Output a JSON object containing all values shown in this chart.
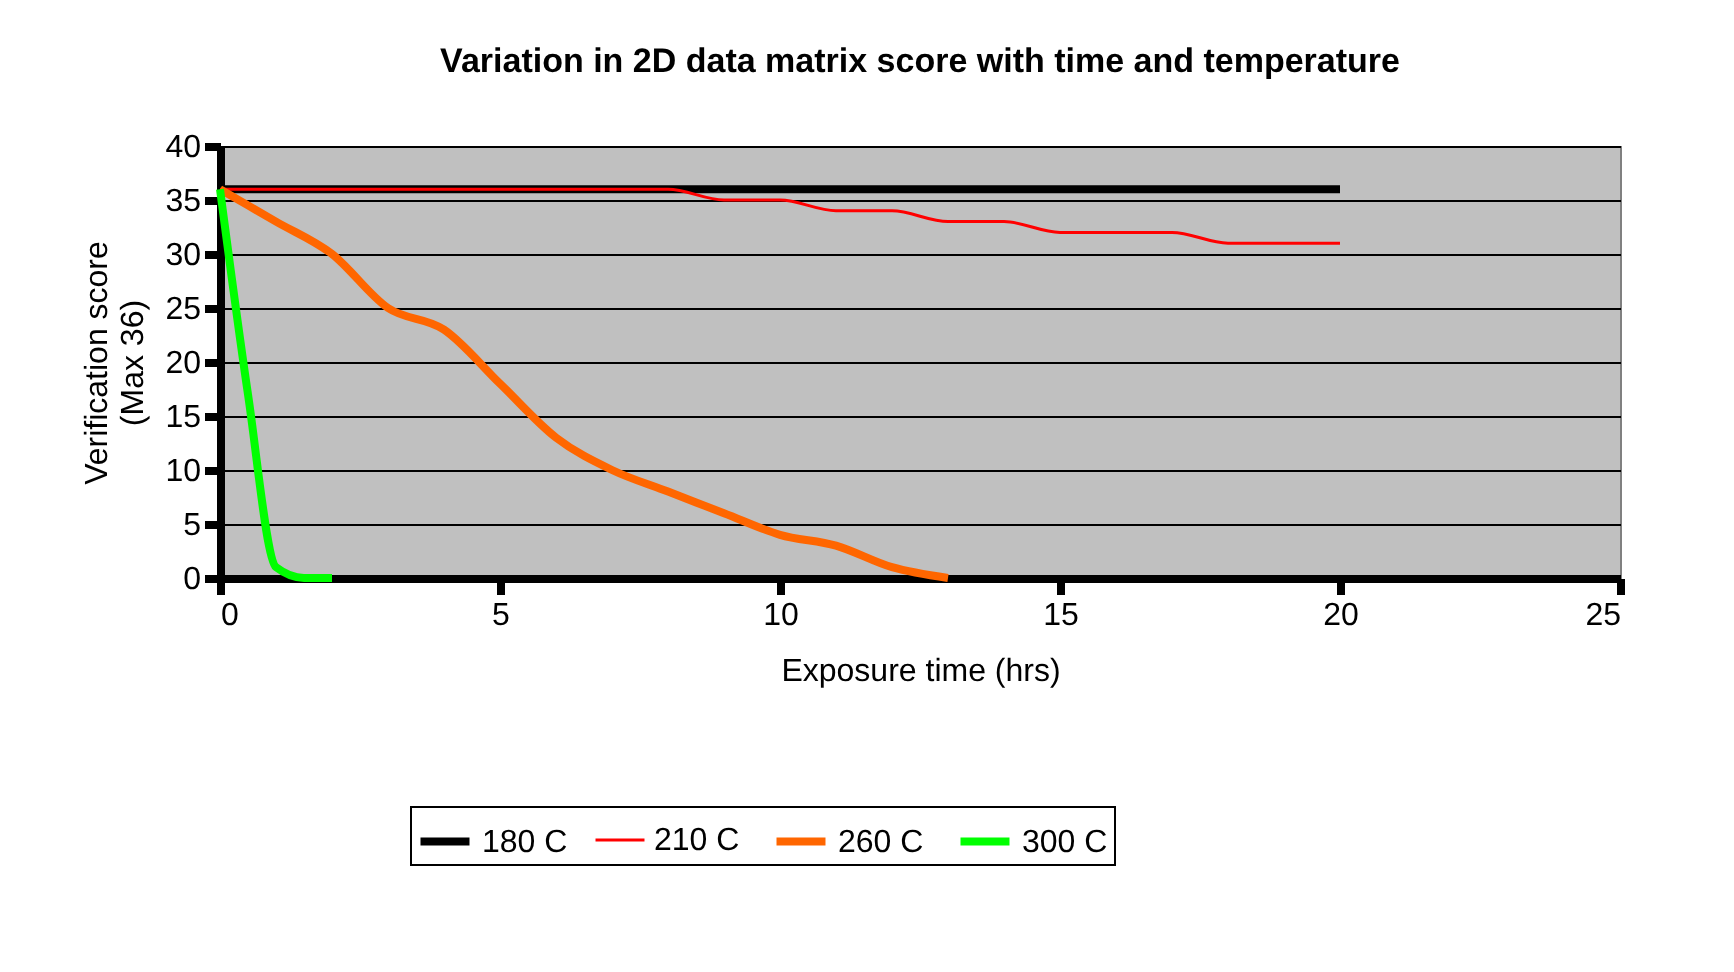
{
  "chart_data": {
    "type": "line",
    "title": "Variation in 2D data matrix score with time and temperature",
    "xlabel": "Exposure time (hrs)",
    "ylabel": "Verification score\n(Max 36)",
    "xlim": [
      0,
      25
    ],
    "xticks": [
      0,
      5,
      10,
      15,
      20,
      25
    ],
    "ylim": [
      0,
      40
    ],
    "yticks": [
      0,
      5,
      10,
      15,
      20,
      25,
      30,
      35,
      40
    ],
    "grid": "y",
    "legend": "bottom",
    "marker": "none",
    "line_style": "solid",
    "series": [
      {
        "name": "180 C",
        "color": "#000000",
        "x": [
          0,
          20
        ],
        "values": [
          36,
          36
        ]
      },
      {
        "name": "210 C",
        "color": "#ff0000",
        "x": [
          0,
          1,
          2,
          3,
          4,
          5,
          6,
          7,
          8,
          9,
          10,
          11,
          12,
          13,
          14,
          15,
          16,
          17,
          18,
          19,
          20
        ],
        "values": [
          36,
          36,
          36,
          36,
          36,
          36,
          36,
          36,
          36,
          35,
          35,
          34,
          34,
          33,
          33,
          32,
          32,
          32,
          31,
          31,
          31
        ]
      },
      {
        "name": "260 C",
        "color": "#ff6600",
        "x": [
          0,
          1,
          2,
          3,
          4,
          5,
          6,
          7,
          8,
          9,
          10,
          11,
          12,
          13
        ],
        "values": [
          36,
          33,
          30,
          25,
          23,
          18,
          13,
          10,
          8,
          6,
          4,
          3,
          1,
          0
        ]
      },
      {
        "name": "300 C",
        "color": "#00ff00",
        "x": [
          0,
          0.5,
          1,
          1.5,
          2
        ],
        "values": [
          36,
          17,
          1,
          0,
          0
        ]
      }
    ]
  }
}
